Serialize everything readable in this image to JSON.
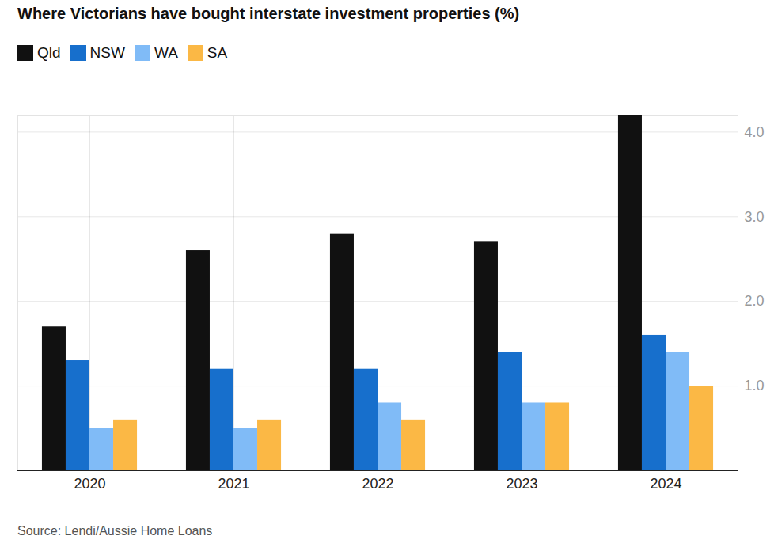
{
  "chart_data": {
    "type": "bar",
    "title": "Where Victorians have bought interstate investment properties (%)",
    "source": "Source: Lendi/Aussie Home Loans",
    "categories": [
      "2020",
      "2021",
      "2022",
      "2023",
      "2024"
    ],
    "series": [
      {
        "name": "Qld",
        "color": "#111111",
        "values": [
          1.7,
          2.6,
          2.8,
          2.7,
          4.2
        ]
      },
      {
        "name": "NSW",
        "color": "#176fcc",
        "values": [
          1.3,
          1.2,
          1.2,
          1.4,
          1.6
        ]
      },
      {
        "name": "WA",
        "color": "#80bbf7",
        "values": [
          0.5,
          0.5,
          0.8,
          0.8,
          1.4
        ]
      },
      {
        "name": "SA",
        "color": "#fbb845",
        "values": [
          0.6,
          0.6,
          0.6,
          0.8,
          1.0
        ]
      }
    ],
    "ylim": [
      0,
      4.2
    ],
    "yticks": [
      1,
      2,
      3,
      4
    ],
    "grid": true,
    "legend": "top-left"
  }
}
